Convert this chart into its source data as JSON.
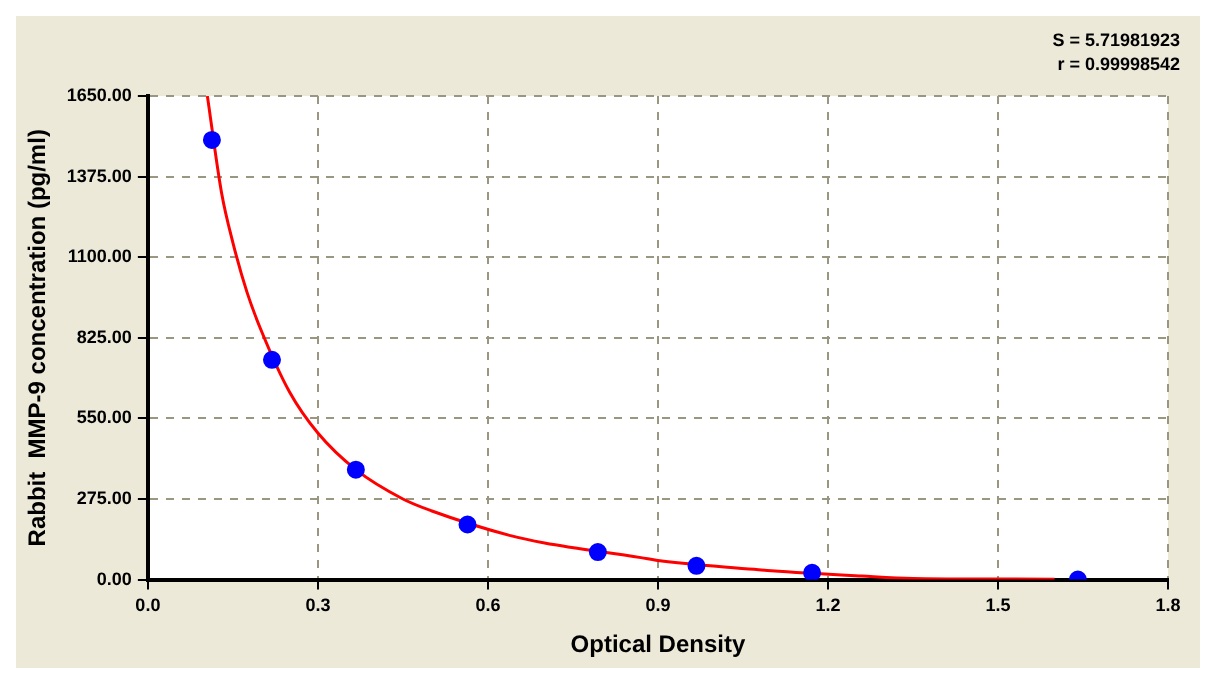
{
  "chart_data": {
    "type": "scatter",
    "xlabel": "Optical Density",
    "ylabel": "Rabbit  MMP-9 concentration (pg/ml)",
    "annotations": [
      "S = 5.71981923",
      "r = 0.99998542"
    ],
    "xlim": [
      0,
      1.8
    ],
    "xticks": [
      {
        "value": 0,
        "label": "0.0"
      },
      {
        "value": 0.3,
        "label": "0.3"
      },
      {
        "value": 0.6,
        "label": "0.6"
      },
      {
        "value": 0.9,
        "label": "0.9"
      },
      {
        "value": 1.2,
        "label": "1.2"
      },
      {
        "value": 1.5,
        "label": "1.5"
      },
      {
        "value": 1.8,
        "label": "1.8"
      }
    ],
    "ylim": [
      0,
      1650
    ],
    "yticks": [
      {
        "value": 0,
        "label": "0.00"
      },
      {
        "value": 275,
        "label": "275.00"
      },
      {
        "value": 550,
        "label": "550.00"
      },
      {
        "value": 825,
        "label": "825.00"
      },
      {
        "value": 1100,
        "label": "1100.00"
      },
      {
        "value": 1375,
        "label": "1375.00"
      },
      {
        "value": 1650,
        "label": "1650.00"
      }
    ],
    "grid": true,
    "legend": false,
    "marker": "circle",
    "series": [
      {
        "color": "#0000ff",
        "x": [
          0.113,
          0.219,
          0.367,
          0.564,
          0.794,
          0.968,
          1.172,
          1.641
        ],
        "values": [
          1500,
          750,
          375,
          188,
          94,
          47,
          23,
          0
        ]
      },
      {
        "type": "line",
        "color": "#ff0000",
        "marker": "none",
        "x": [
          0.105,
          0.13,
          0.15,
          0.175,
          0.2,
          0.25,
          0.3,
          0.367,
          0.45,
          0.5,
          0.64,
          0.7,
          0.87,
          0.9,
          1.07,
          1.1,
          1.26,
          1.35,
          1.5,
          1.6
        ],
        "values": [
          1650,
          1320,
          1150,
          980,
          850,
          640,
          500,
          375,
          275,
          235,
          150,
          125,
          75,
          65,
          35,
          30,
          12,
          4,
          2,
          1
        ]
      }
    ]
  }
}
